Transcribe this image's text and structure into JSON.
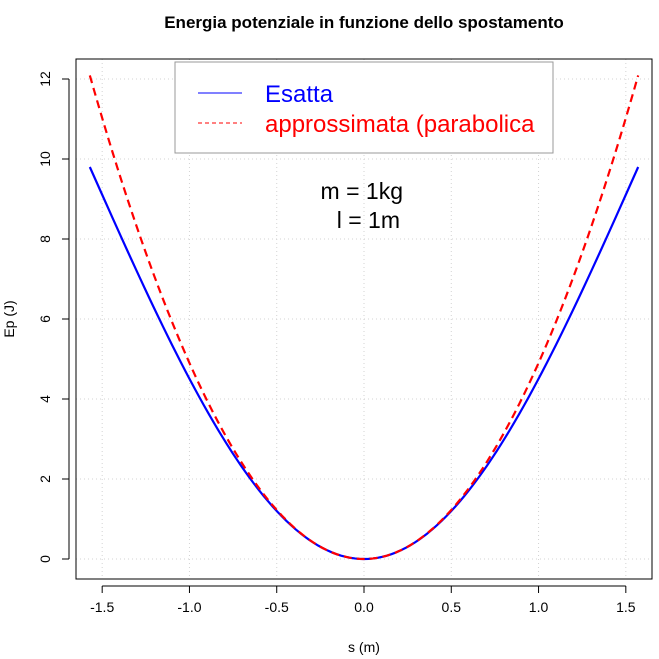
{
  "chart_data": {
    "type": "line",
    "title": "Energia potenziale in funzione dello spostamento",
    "xlabel": "s (m)",
    "ylabel": "Ep (J)",
    "xlim": [
      -1.65,
      1.65
    ],
    "ylim": [
      -0.5,
      12.5
    ],
    "xticks": [
      -1.5,
      -1.0,
      -0.5,
      0.0,
      0.5,
      1.0,
      1.5
    ],
    "xtick_labels": [
      "-1.5",
      "-1.0",
      "-0.5",
      "0.0",
      "0.5",
      "1.0",
      "1.5"
    ],
    "yticks": [
      0,
      2,
      4,
      6,
      8,
      10,
      12
    ],
    "ytick_labels": [
      "0",
      "2",
      "4",
      "6",
      "8",
      "10",
      "12"
    ],
    "grid": true,
    "legend_position": "top",
    "annotations": [
      "m = 1kg",
      "l = 1m"
    ],
    "series": [
      {
        "name": "Esatta",
        "color": "#0000ff",
        "style": "solid",
        "x": [
          -1.5708,
          -1.4,
          -1.2,
          -1.0,
          -0.8,
          -0.6,
          -0.4,
          -0.2,
          0.0,
          0.2,
          0.4,
          0.6,
          0.8,
          1.0,
          1.2,
          1.4,
          1.5708
        ],
        "y": [
          9.8,
          8.11,
          6.25,
          4.5,
          2.97,
          1.71,
          0.77,
          0.2,
          0.0,
          0.2,
          0.77,
          1.71,
          2.97,
          4.5,
          6.25,
          8.11,
          9.8
        ]
      },
      {
        "name": "approssimata (parabolica",
        "color": "#ff0000",
        "style": "dashed",
        "x": [
          -1.5708,
          -1.4,
          -1.2,
          -1.0,
          -0.8,
          -0.6,
          -0.4,
          -0.2,
          0.0,
          0.2,
          0.4,
          0.6,
          0.8,
          1.0,
          1.2,
          1.4,
          1.5708
        ],
        "y": [
          12.09,
          9.6,
          7.06,
          4.9,
          3.14,
          1.76,
          0.78,
          0.2,
          0.0,
          0.2,
          0.78,
          1.76,
          3.14,
          4.9,
          7.06,
          9.6,
          12.09
        ]
      }
    ]
  }
}
